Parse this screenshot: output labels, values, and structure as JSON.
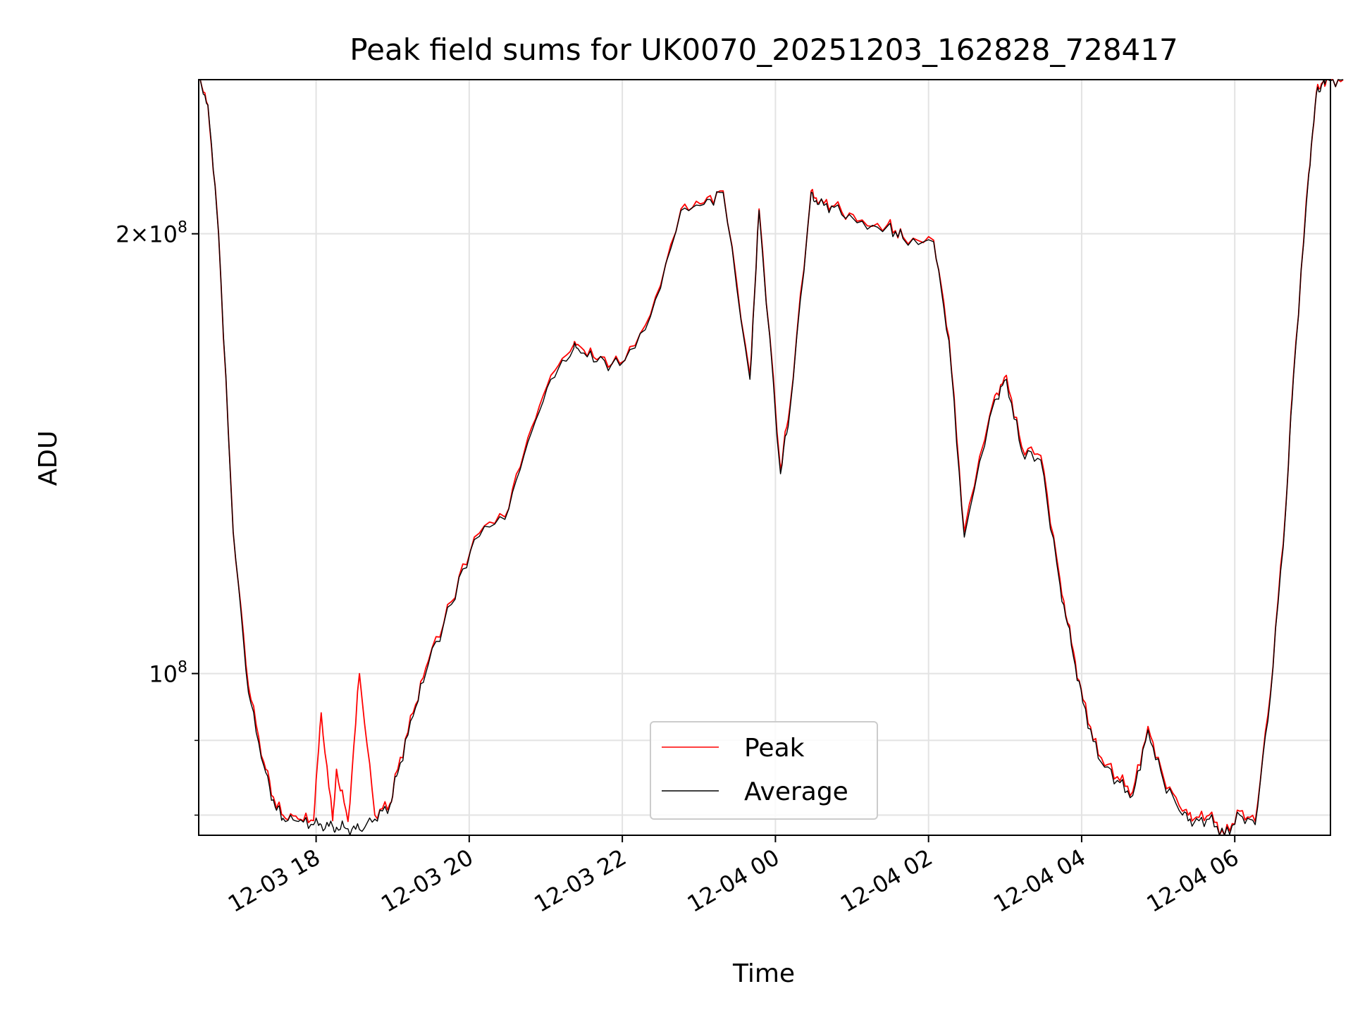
{
  "chart_data": {
    "type": "line",
    "title": "Peak field sums for UK0070_20251203_162828_728417",
    "xlabel": "Time",
    "ylabel": "ADU",
    "yscale": "log",
    "grid": true,
    "legend_position": "lower-center",
    "x_ticks": [
      "12-03 18",
      "12-03 20",
      "12-03 22",
      "12-04 00",
      "12-04 02",
      "12-04 04",
      "12-04 06"
    ],
    "y_ticks_major": [
      {
        "value": 100000000,
        "base": "10",
        "exp": "8",
        "coef": ""
      },
      {
        "value": 200000000,
        "base": "10",
        "exp": "8",
        "coef": "2"
      }
    ],
    "y_ticks_minor": [
      90000000,
      80000000
    ],
    "xlim": [
      "2025-12-03 16:28",
      "2025-12-04 07:15"
    ],
    "ylim": [
      77500000,
      255000000
    ],
    "x_hours": [
      0.0,
      0.12,
      0.26,
      0.45,
      0.65,
      0.85,
      1.0,
      1.1,
      1.3,
      1.5,
      1.6,
      1.75,
      1.8,
      1.95,
      2.1,
      2.3,
      2.5,
      2.6,
      2.8,
      3.0,
      3.3,
      3.6,
      4.0,
      4.3,
      4.6,
      4.9,
      4.95,
      5.2,
      5.5,
      5.9,
      6.3,
      6.6,
      6.85,
      7.2,
      7.32,
      7.6,
      7.72,
      8.0,
      8.1,
      8.3,
      8.6,
      9.0,
      9.2,
      9.6,
      9.8,
      10.0,
      10.4,
      10.55,
      10.75,
      11.0,
      11.25,
      11.4,
      11.55,
      11.75,
      12.0,
      12.2,
      12.4,
      12.6,
      12.85,
      13.0,
      13.2,
      13.4,
      13.6,
      13.8,
      14.0,
      14.2,
      14.3,
      14.5,
      14.6,
      14.7,
      14.75,
      14.95
    ],
    "series": [
      {
        "name": "Peak",
        "color": "#ff0000",
        "values": [
          255000000,
          245000000,
          200000000,
          125000000,
          98000000,
          87000000,
          81500000,
          80000000,
          79500000,
          79300000,
          94000000,
          79300000,
          86000000,
          79200000,
          100000000,
          80000000,
          81500000,
          86000000,
          94000000,
          102000000,
          112000000,
          124000000,
          128000000,
          145000000,
          160000000,
          168000000,
          168000000,
          164000000,
          163000000,
          176000000,
          208000000,
          210000000,
          214000000,
          160000000,
          208000000,
          138000000,
          152000000,
          214000000,
          210000000,
          209000000,
          204000000,
          203000000,
          199000000,
          198000000,
          170000000,
          125000000,
          155000000,
          160000000,
          143000000,
          141000000,
          116000000,
          105000000,
          96000000,
          88000000,
          85000000,
          83000000,
          92000000,
          85000000,
          80500000,
          79500000,
          80000000,
          77500000,
          80500000,
          79200000,
          97000000,
          130000000,
          160000000,
          220000000,
          250000000,
          255000000,
          255000000,
          255000000
        ]
      },
      {
        "name": "Average",
        "color": "#000000",
        "values": [
          255000000,
          245000000,
          200000000,
          125000000,
          97000000,
          86500000,
          81000000,
          79600000,
          79200000,
          78800000,
          78800000,
          78600000,
          78500000,
          78300000,
          78200000,
          79500000,
          81300000,
          85500000,
          93500000,
          101500000,
          111500000,
          123500000,
          127500000,
          144000000,
          159000000,
          167000000,
          167000000,
          163500000,
          162500000,
          175500000,
          207500000,
          209500000,
          213500000,
          159000000,
          207500000,
          137000000,
          151000000,
          213500000,
          209500000,
          208500000,
          203500000,
          202500000,
          198500000,
          197500000,
          169000000,
          124000000,
          154000000,
          159000000,
          142000000,
          140000000,
          115000000,
          104500000,
          95500000,
          87500000,
          84500000,
          82500000,
          91500000,
          84500000,
          80000000,
          79000000,
          79500000,
          77500000,
          80000000,
          78800000,
          96500000,
          129500000,
          159500000,
          219500000,
          249500000,
          255000000,
          255000000,
          255000000
        ]
      }
    ]
  }
}
